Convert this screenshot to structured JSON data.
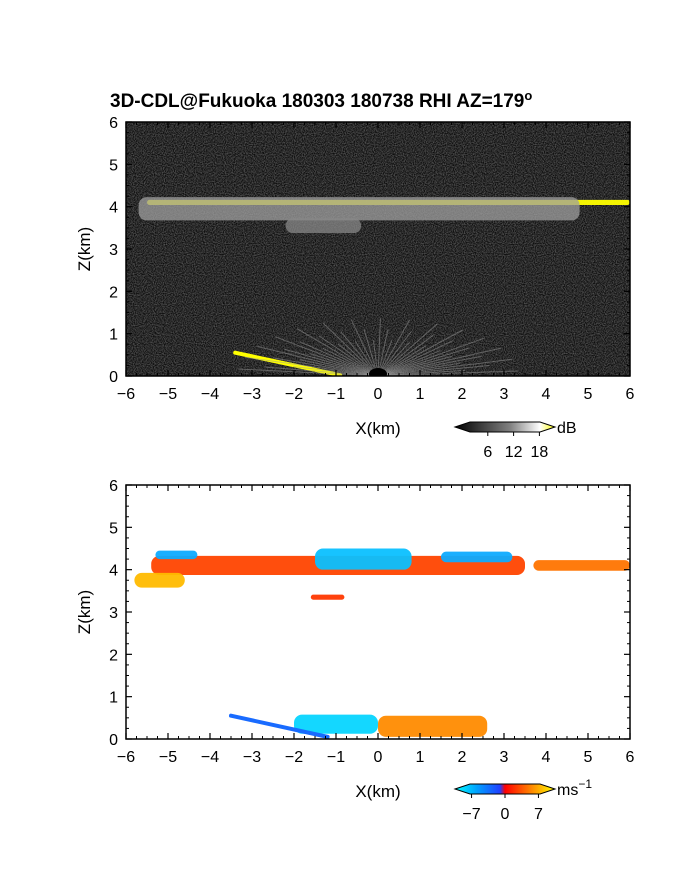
{
  "title": "3D-CDL@Fukuoka 180303 180738 RHI AZ=179",
  "title_superscript": "o",
  "colors": {
    "background_top": "#0c0c0c",
    "snr_highlight": "#ffff00",
    "velocity_negative": "#1a5cff",
    "velocity_cyan": "#00c8ff",
    "velocity_zero": "#ff2200",
    "velocity_positive": "#ffcc00"
  },
  "chart_data": [
    {
      "type": "heatmap",
      "panel": "top",
      "quantity": "SNR",
      "xlabel": "X(km)",
      "ylabel": "Z(km)",
      "xlim": [
        -6,
        6
      ],
      "ylim": [
        0,
        6
      ],
      "xticks": [
        "-6",
        "-5",
        "-4",
        "-3",
        "-2",
        "-1",
        "0",
        "1",
        "2",
        "3",
        "4",
        "5",
        "6"
      ],
      "yticks": [
        "0",
        "1",
        "2",
        "3",
        "4",
        "5",
        "6"
      ],
      "colorbar": {
        "unit": "dB",
        "ticks": [
          "6",
          "12",
          "18"
        ],
        "tick_values": [
          6,
          12,
          18
        ],
        "range": [
          0,
          20
        ]
      },
      "features": [
        {
          "name": "cloud-layer-bright",
          "x": [
            -5.5,
            6
          ],
          "z_center": 4.1,
          "thickness_km": 0.12,
          "value_db": 19
        },
        {
          "name": "cloud-layer-gray",
          "x": [
            -5.7,
            4.8
          ],
          "z_center": 3.95,
          "thickness_km": 0.55,
          "value_db": 10
        },
        {
          "name": "cloud-sag",
          "x": [
            -2.2,
            -0.4
          ],
          "z_center": 3.55,
          "thickness_km": 0.35,
          "value_db": 8
        },
        {
          "name": "surface-return-left",
          "x": [
            -3.4,
            -0.9
          ],
          "z_start": 0.55,
          "z_end": 0.02,
          "value_db": 19
        },
        {
          "name": "near-field-fan",
          "x": [
            -2,
            2
          ],
          "z_max": 0.8,
          "value_db": 12
        }
      ]
    },
    {
      "type": "heatmap",
      "panel": "bottom",
      "quantity": "Doppler velocity",
      "xlabel": "X(km)",
      "ylabel": "Z(km)",
      "xlim": [
        -6,
        6
      ],
      "ylim": [
        0,
        6
      ],
      "xticks": [
        "-6",
        "-5",
        "-4",
        "-3",
        "-2",
        "-1",
        "0",
        "1",
        "2",
        "3",
        "4",
        "5",
        "6"
      ],
      "yticks": [
        "0",
        "1",
        "2",
        "3",
        "4",
        "5",
        "6"
      ],
      "colorbar": {
        "unit": "ms",
        "unit_superscript": "−1",
        "ticks": [
          "−7",
          "0",
          "7"
        ],
        "tick_values": [
          -7,
          0,
          7
        ],
        "range": [
          -9,
          9
        ]
      },
      "features": [
        {
          "name": "upper-red-band",
          "x": [
            -5.4,
            3.5
          ],
          "z_center": 4.1,
          "thickness_km": 0.45,
          "velocity": 2.0
        },
        {
          "name": "upper-blue-left",
          "x": [
            -5.3,
            -4.3
          ],
          "z_center": 4.35,
          "thickness_km": 0.2,
          "velocity": -5
        },
        {
          "name": "upper-blue-center",
          "x": [
            -1.5,
            0.8
          ],
          "z_center": 4.25,
          "thickness_km": 0.5,
          "velocity": -6
        },
        {
          "name": "upper-blue-right",
          "x": [
            1.5,
            3.2
          ],
          "z_center": 4.3,
          "thickness_km": 0.25,
          "velocity": -5
        },
        {
          "name": "right-orange-band",
          "x": [
            3.7,
            6
          ],
          "z_center": 4.1,
          "thickness_km": 0.25,
          "velocity": 4
        },
        {
          "name": "left-yellow-patch",
          "x": [
            -5.8,
            -4.6
          ],
          "z_center": 3.75,
          "thickness_km": 0.35,
          "velocity": 7
        },
        {
          "name": "sag-red",
          "x": [
            -1.6,
            -0.8
          ],
          "z_center": 3.35,
          "thickness_km": 0.12,
          "velocity": 1.5
        },
        {
          "name": "low-blue",
          "x": [
            -2.0,
            0
          ],
          "z_center": 0.35,
          "thickness_km": 0.45,
          "velocity": -7
        },
        {
          "name": "low-orange",
          "x": [
            0,
            2.6
          ],
          "z_center": 0.3,
          "thickness_km": 0.5,
          "velocity": 5
        },
        {
          "name": "low-left-streak",
          "x": [
            -3.5,
            -1.2
          ],
          "z_start": 0.55,
          "z_end": 0.05,
          "velocity": -2
        }
      ]
    }
  ]
}
